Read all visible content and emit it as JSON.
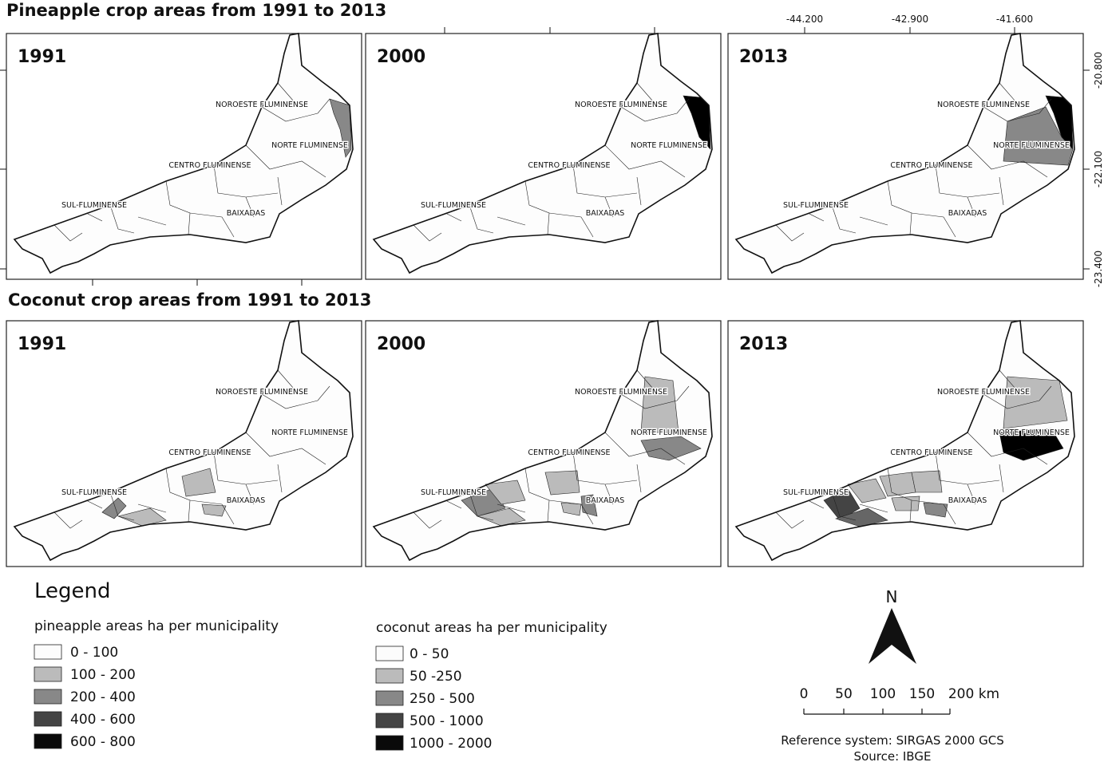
{
  "pineapple": {
    "title": "Pineapple crop areas from 1991 to 2013",
    "panels": [
      "1991",
      "2000",
      "2013"
    ]
  },
  "coconut": {
    "title": "Coconut crop areas from 1991 to 2013",
    "panels": [
      "1991",
      "2000",
      "2013"
    ]
  },
  "region_labels": [
    "NOROESTE FLUMINENSE",
    "NORTE FLUMINENSE",
    "CENTRO FLUMINENSE",
    "SUL-FLUMINENSE",
    "BAIXADAS"
  ],
  "lon_ticks": [
    "-44.200",
    "-42.900",
    "-41.600"
  ],
  "lat_ticks": [
    "-20.800",
    "-22.100",
    "-23.400"
  ],
  "legend": {
    "title": "Legend",
    "pineapple": {
      "title": "pineapple areas ha per municipality",
      "classes": [
        "0  - 100",
        "100 - 200",
        "200 - 400",
        "400 - 600",
        "600 - 800"
      ]
    },
    "coconut": {
      "title": "coconut areas ha per municipality",
      "classes": [
        "0 - 50",
        "50 -250",
        "250 - 500",
        "500 - 1000",
        "1000 - 2000"
      ]
    }
  },
  "north": "N",
  "scale": [
    "0",
    "50",
    "100",
    "150",
    "200 km"
  ],
  "reference": "Reference system: SIRGAS 2000 GCS",
  "source": "Source: IBGE"
}
